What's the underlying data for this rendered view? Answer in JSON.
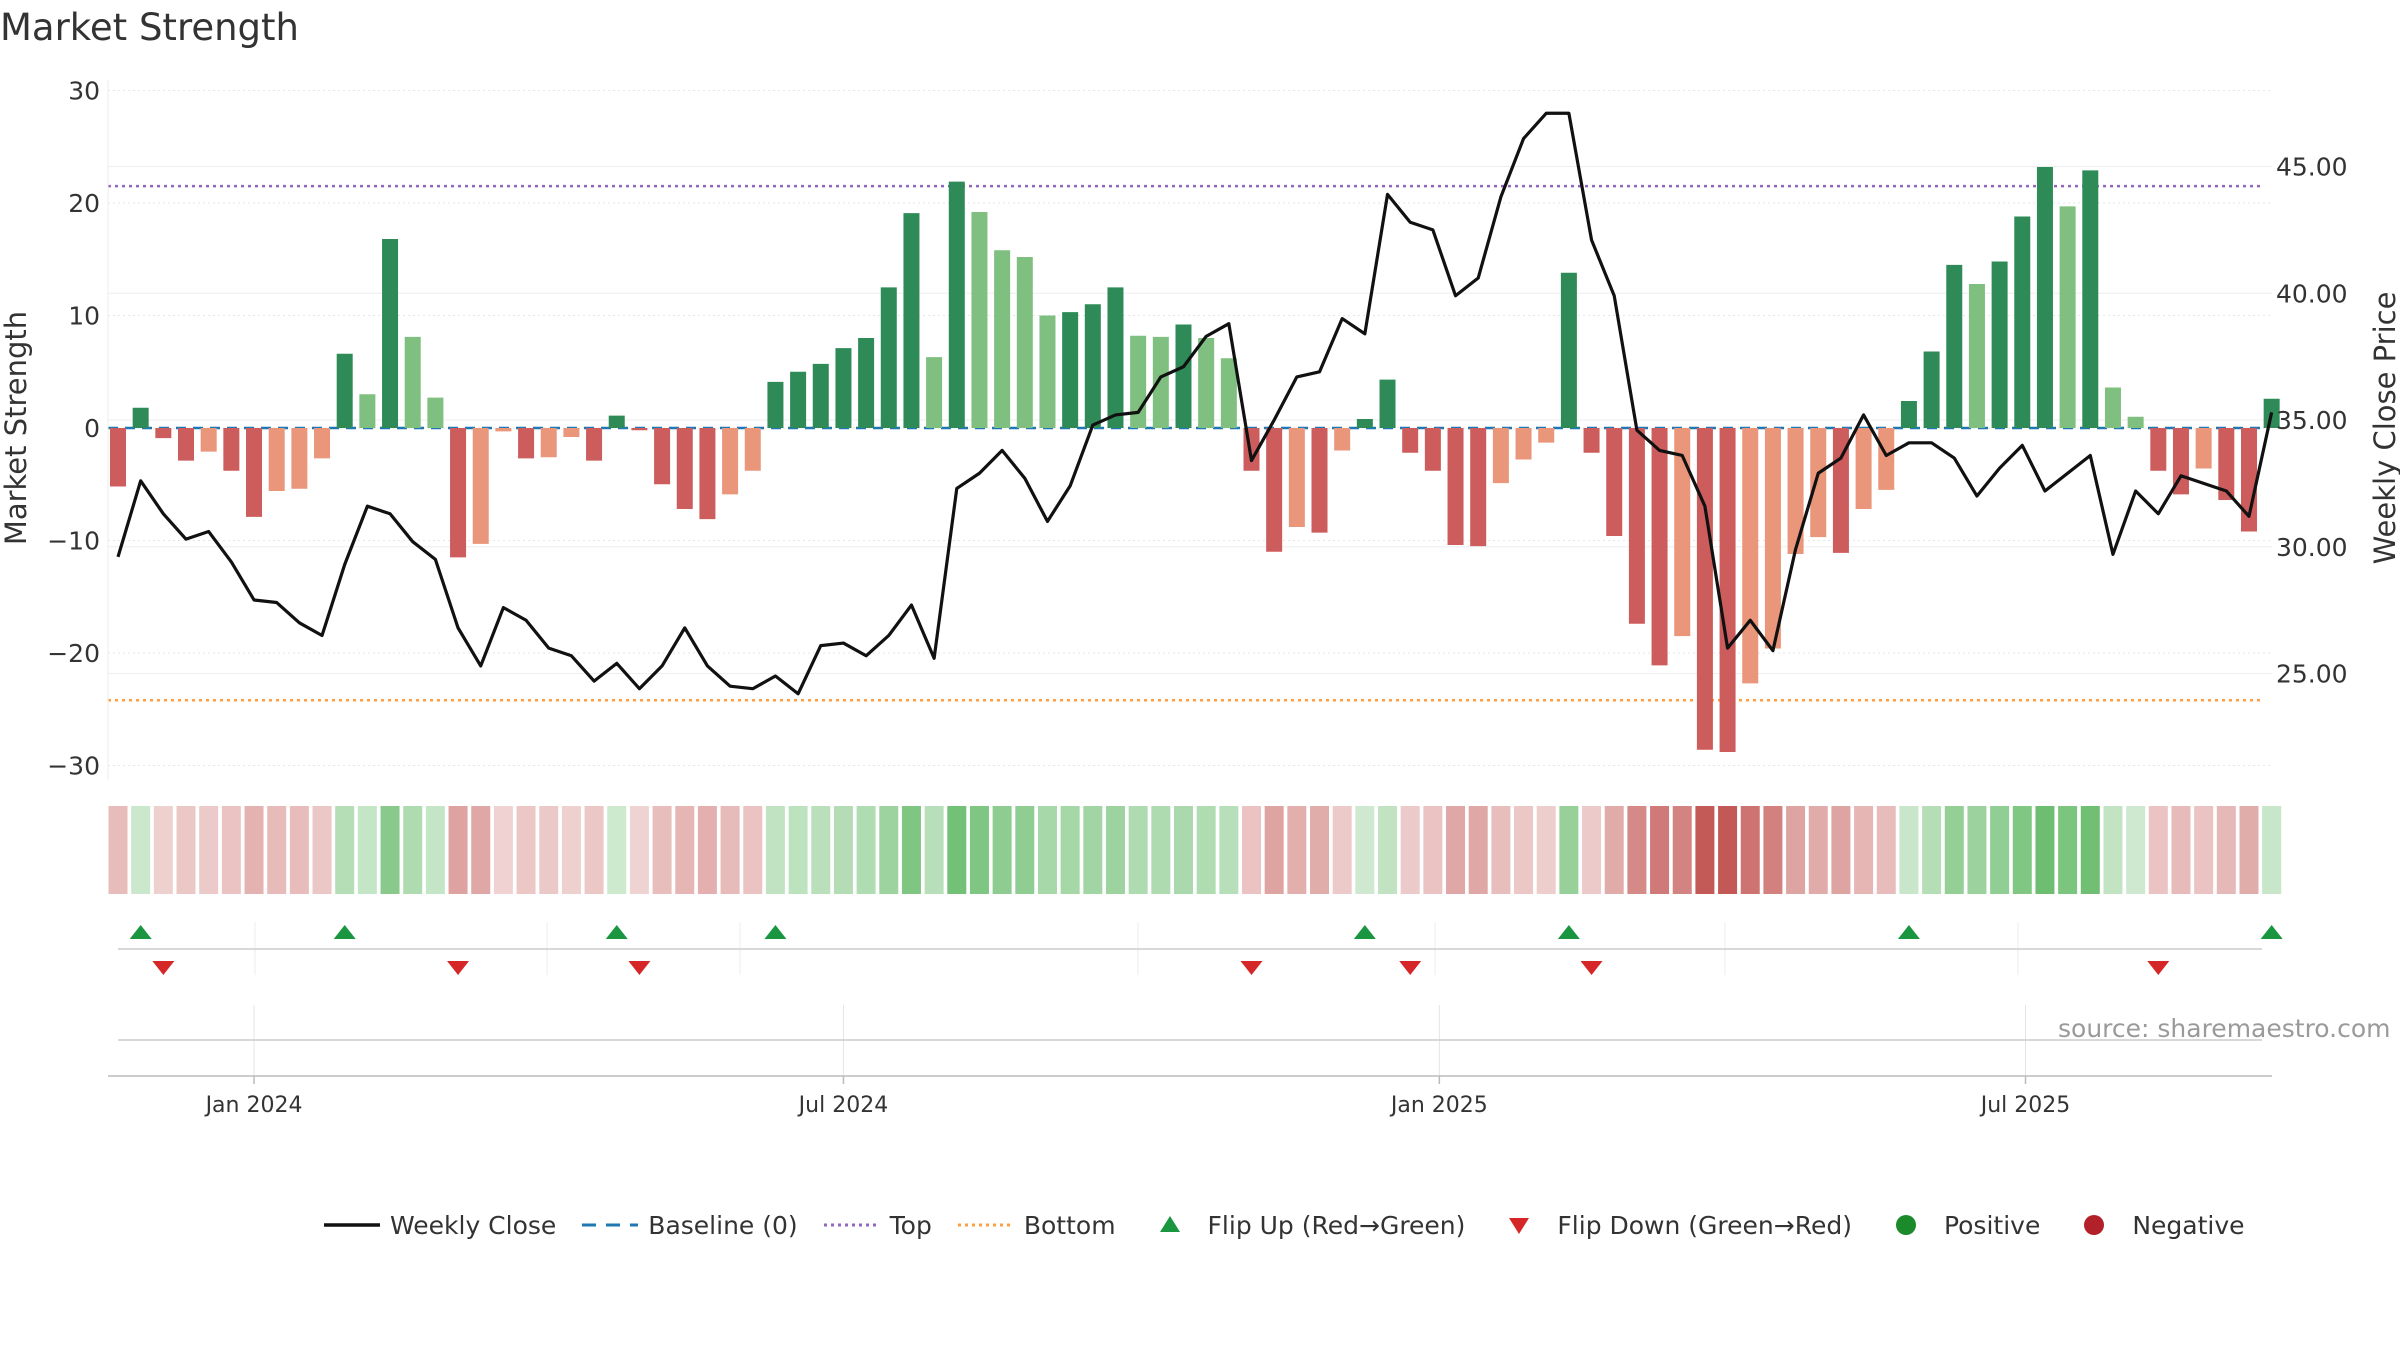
{
  "title": "Market Strength",
  "source": "source: sharemaestro.com",
  "legend": [
    {
      "label": "Weekly Close",
      "symbol": "line",
      "color": "#111111"
    },
    {
      "label": "Baseline (0)",
      "symbol": "dash",
      "color": "#1f77b4"
    },
    {
      "label": "Top",
      "symbol": "dot",
      "color": "#9467bd"
    },
    {
      "label": "Bottom",
      "symbol": "dot",
      "color": "#ff9f40"
    },
    {
      "label": "Flip Up (Red→Green)",
      "symbol": "tri-up",
      "color": "#1a9641"
    },
    {
      "label": "Flip Down (Green→Red)",
      "symbol": "tri-down",
      "color": "#d62728"
    },
    {
      "label": "Positive",
      "symbol": "circle",
      "color": "#1b8a2a"
    },
    {
      "label": "Negative",
      "symbol": "circle",
      "color": "#b2202a"
    }
  ],
  "colors": {
    "pos_strong": "#2e8b57",
    "pos_light": "#7fbf7f",
    "neg_strong": "#cd5c5c",
    "neg_light": "#e9967a",
    "price_line": "#111111",
    "baseline": "#1f77b4",
    "top": "#9467bd",
    "bottom": "#ff9f40",
    "heat_pos": "#4caf50",
    "heat_neg": "#c0504d"
  },
  "chart_data": {
    "type": "bar",
    "ylabel": "Market Strength",
    "y2label": "Weekly Close Price",
    "ylim": [
      -30,
      30
    ],
    "y2lim": [
      21,
      48
    ],
    "yticks": [
      -30,
      -20,
      -10,
      0,
      10,
      20,
      30
    ],
    "ytick_labels": [
      "−30",
      "−20",
      "−10",
      "0",
      "10",
      "20",
      "30"
    ],
    "y2ticks": [
      25,
      30,
      35,
      40,
      45
    ],
    "y2tick_labels": [
      "25.00",
      "30.00",
      "35.00",
      "40.00",
      "45.00"
    ],
    "x_start": "2023-11-20",
    "x_end": "2025-10-13",
    "xtick_labels": [
      {
        "date": "2024-01-01",
        "label": "Jan 2024"
      },
      {
        "date": "2024-07-01",
        "label": "Jul 2024"
      },
      {
        "date": "2025-01-01",
        "label": "Jan 2025"
      },
      {
        "date": "2025-07-01",
        "label": "Jul 2025"
      }
    ],
    "top_line": 21.5,
    "bottom_line": -24.2,
    "grid": true,
    "strength": [
      -5.2,
      1.8,
      -0.9,
      -2.9,
      -2.1,
      -3.8,
      -7.9,
      -5.6,
      -5.4,
      -2.7,
      6.6,
      3,
      16.8,
      8.1,
      2.7,
      -11.5,
      -10.3,
      -0.3,
      -2.7,
      -2.6,
      -0.8,
      -2.9,
      1.1,
      -0.2,
      -5,
      -7.2,
      -8.1,
      -5.9,
      -3.8,
      4.1,
      5,
      5.7,
      7.1,
      8,
      12.5,
      19.1,
      6.3,
      21.9,
      19.2,
      15.8,
      15.2,
      10,
      10.3,
      11,
      12.5,
      8.2,
      8.1,
      9.2,
      8,
      6.2,
      -3.8,
      -11,
      -8.8,
      -9.3,
      -2,
      0.8,
      4.3,
      -2.2,
      -3.8,
      -10.4,
      -10.5,
      -4.9,
      -2.8,
      -1.3,
      13.8,
      -2.2,
      -9.6,
      -17.4,
      -21.1,
      -18.5,
      -28.6,
      -28.8,
      -22.7,
      -19.6,
      -11.2,
      -9.7,
      -11.1,
      -7.2,
      -5.5,
      2.4,
      6.8,
      14.5,
      12.8,
      14.8,
      18.8,
      23.2,
      19.7,
      22.9,
      3.6,
      1,
      -3.8,
      -5.9,
      -3.6,
      -6.4,
      -9.2,
      2.6
    ],
    "weekly_close": [
      29.6,
      32.6,
      31.3,
      30.3,
      30.6,
      29.4,
      27.9,
      27.8,
      27,
      26.5,
      29.3,
      31.6,
      31.3,
      30.2,
      29.5,
      26.8,
      25.3,
      27.6,
      27.1,
      26,
      25.7,
      24.7,
      25.4,
      24.4,
      25.3,
      26.8,
      25.3,
      24.5,
      24.4,
      24.9,
      24.2,
      26.1,
      26.2,
      25.7,
      26.5,
      27.7,
      25.6,
      32.3,
      32.9,
      33.8,
      32.7,
      31,
      32.4,
      34.8,
      35.2,
      35.3,
      36.7,
      37.1,
      38.3,
      38.8,
      33.4,
      35,
      36.7,
      36.9,
      39,
      38.4,
      43.9,
      42.8,
      42.5,
      39.9,
      40.6,
      43.8,
      46.1,
      47.1,
      47.1,
      42.1,
      39.9,
      34.6,
      33.8,
      33.6,
      31.6,
      26,
      27.1,
      25.9,
      29.9,
      32.9,
      33.5,
      35.2,
      33.6,
      34.1,
      34.1,
      33.5,
      32,
      33.1,
      34,
      32.2,
      32.9,
      33.6,
      29.7,
      32.2,
      31.3,
      32.8,
      32.5,
      32.2,
      31.2,
      35.3
    ],
    "flip_up_index": [
      1,
      10,
      22,
      29,
      55,
      64,
      79,
      95
    ],
    "flip_down_index": [
      2,
      15,
      23,
      50,
      57,
      65,
      90
    ],
    "y_axis_zero": 0
  }
}
